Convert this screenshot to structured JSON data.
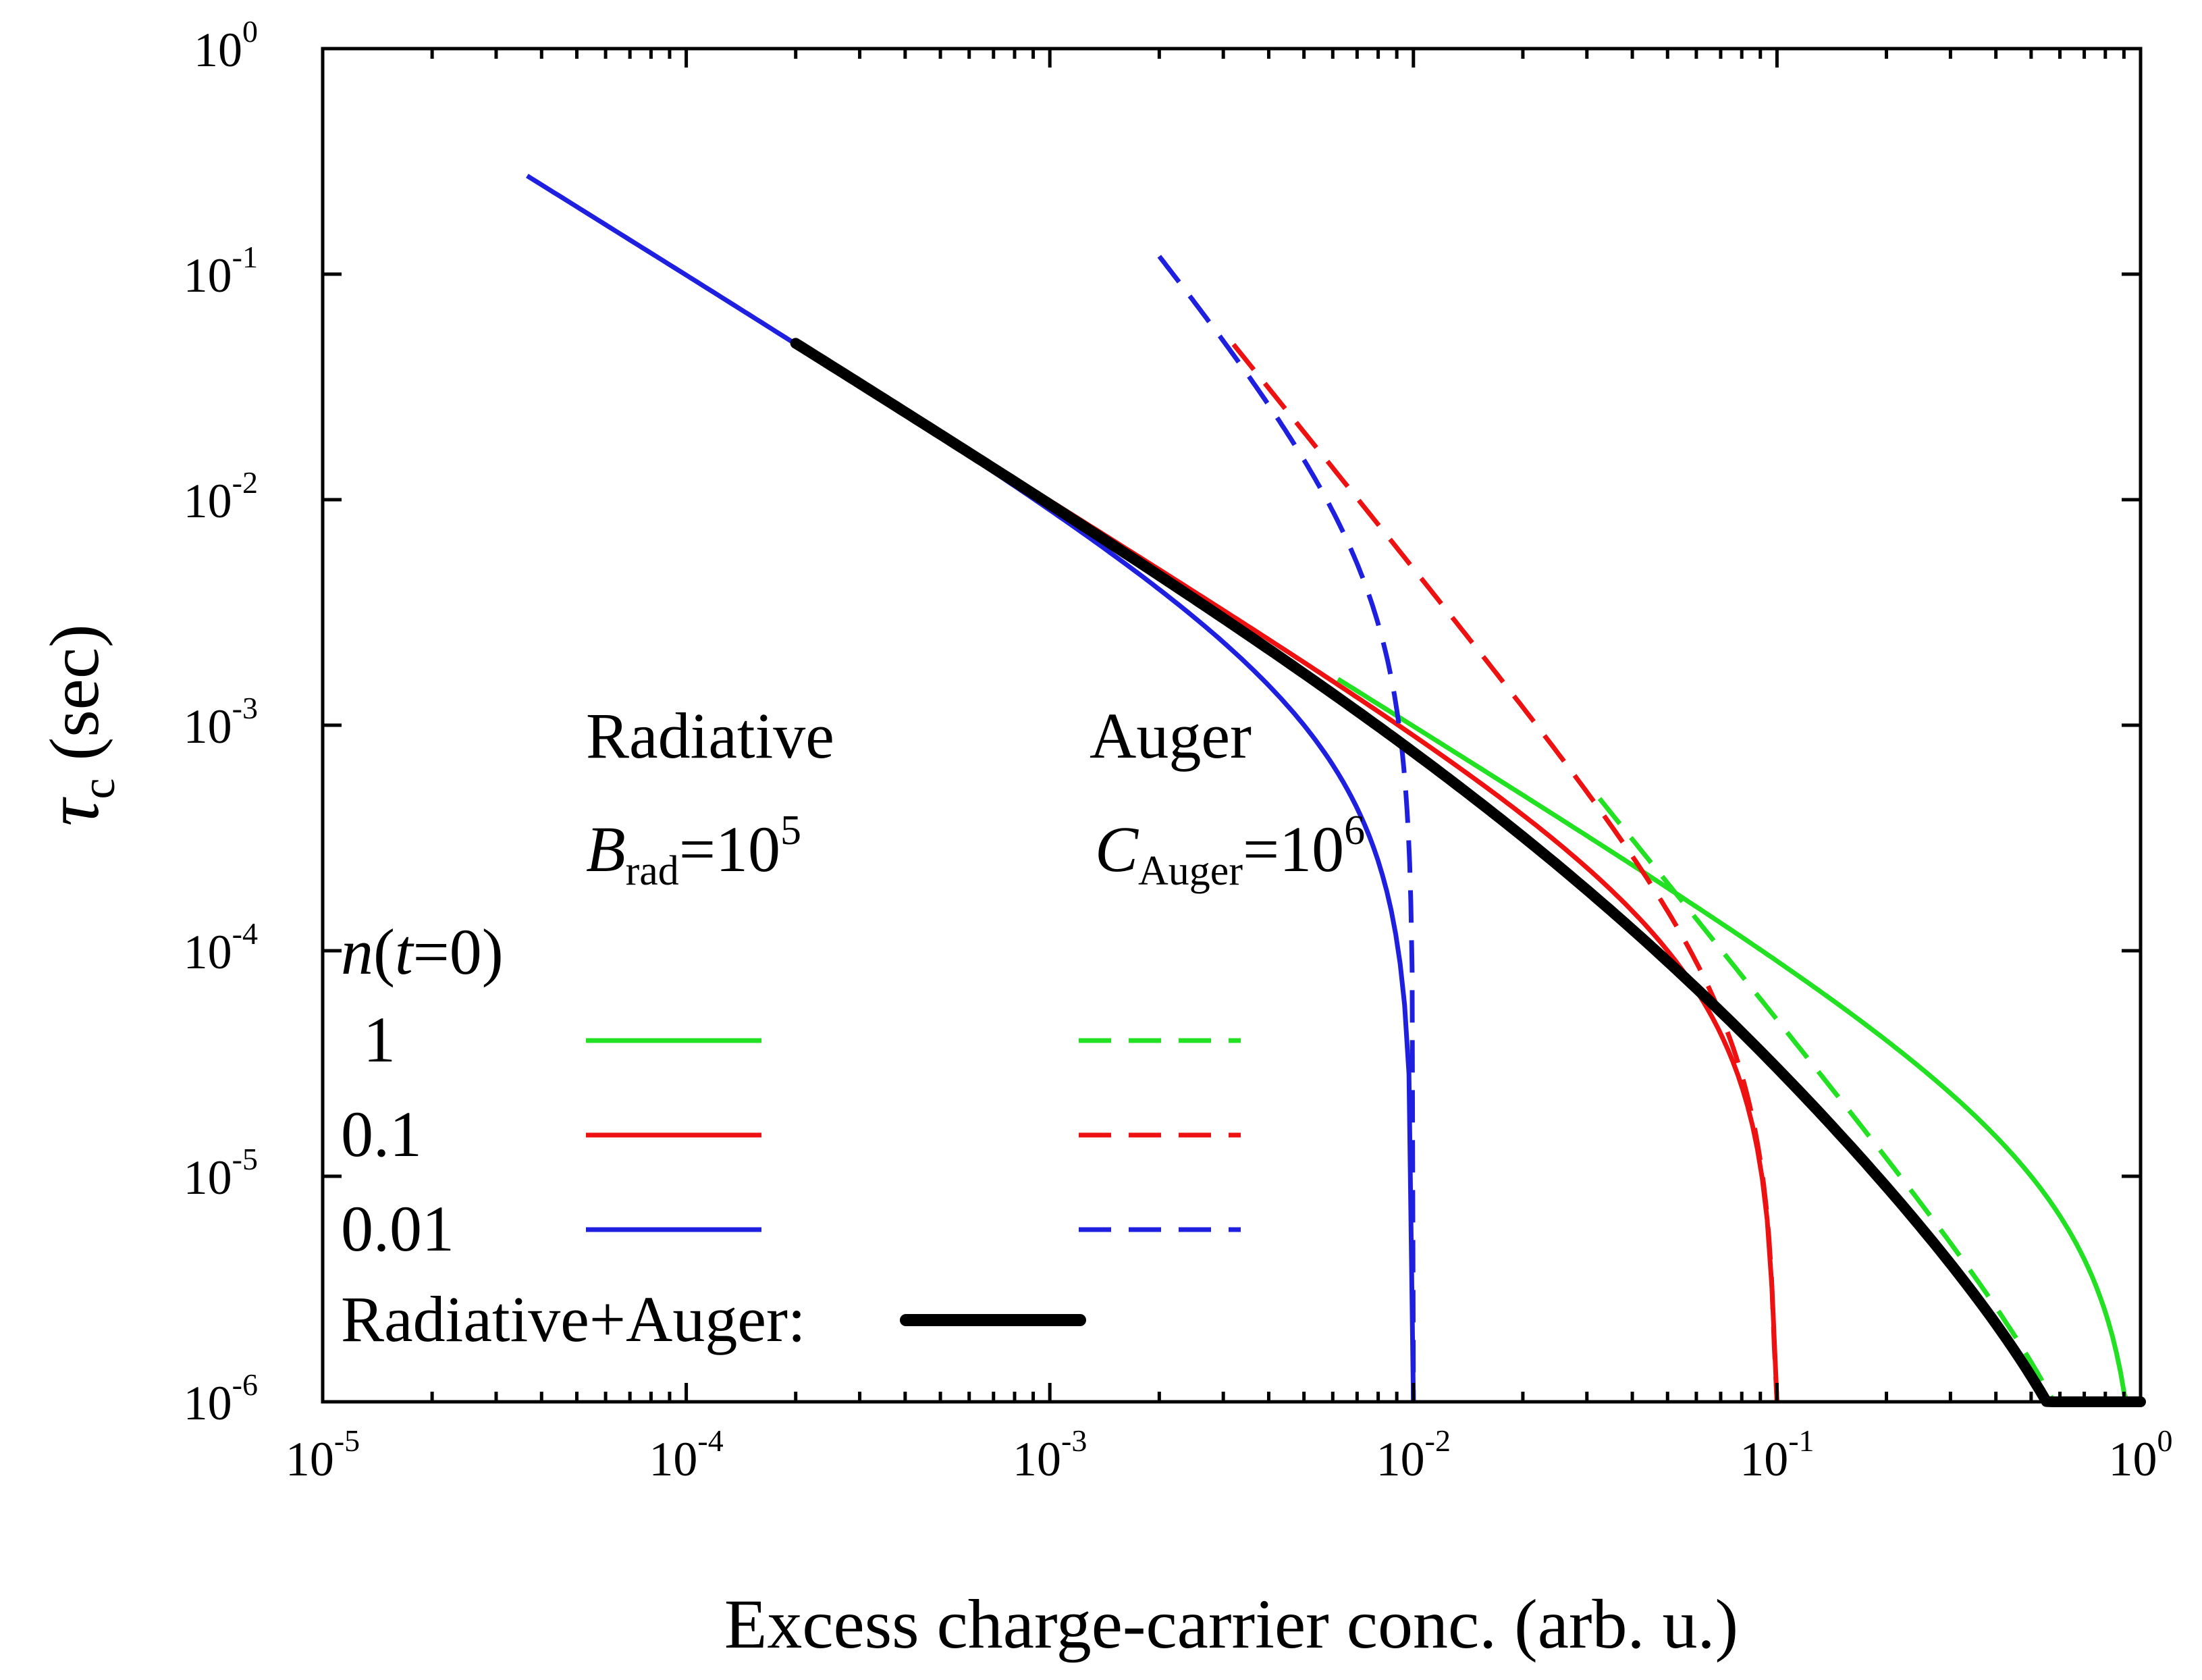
{
  "chart_data": {
    "type": "line",
    "x_scale": "log",
    "y_scale": "log",
    "xlim": [
      1e-05,
      1
    ],
    "ylim": [
      1e-06,
      1
    ],
    "xlabel": "Excess charge-carrier conc. (arb. u.)",
    "ylabel": {
      "symbol": "τ",
      "subscript": "c",
      "rest": " (sec)"
    },
    "x_ticks": [
      {
        "base": "10",
        "exp": "-5",
        "value": 1e-05
      },
      {
        "base": "10",
        "exp": "-4",
        "value": 0.0001
      },
      {
        "base": "10",
        "exp": "-3",
        "value": 0.001
      },
      {
        "base": "10",
        "exp": "-2",
        "value": 0.01
      },
      {
        "base": "10",
        "exp": "-1",
        "value": 0.1
      },
      {
        "base": "10",
        "exp": "0",
        "value": 1
      }
    ],
    "y_ticks": [
      {
        "base": "10",
        "exp": "-6",
        "value": 1e-06
      },
      {
        "base": "10",
        "exp": "-5",
        "value": 1e-05
      },
      {
        "base": "10",
        "exp": "-4",
        "value": 0.0001
      },
      {
        "base": "10",
        "exp": "-3",
        "value": 0.001
      },
      {
        "base": "10",
        "exp": "-2",
        "value": 0.01
      },
      {
        "base": "10",
        "exp": "-1",
        "value": 0.1
      },
      {
        "base": "10",
        "exp": "0",
        "value": 1
      }
    ],
    "params": {
      "B_rad": 100000,
      "C_Auger": 1000000
    },
    "series": [
      {
        "name": "Radiative, n(t=0)=1",
        "mechanism": "radiative",
        "n0": 1,
        "color": "#22e022",
        "dash": "solid",
        "x_range": [
          0.0062,
          1
        ]
      },
      {
        "name": "Radiative, n(t=0)=0.1",
        "mechanism": "radiative",
        "n0": 0.1,
        "color": "#ee1111",
        "dash": "solid",
        "x_range": [
          0.0002,
          0.1
        ]
      },
      {
        "name": "Radiative, n(t=0)=0.01",
        "mechanism": "radiative",
        "n0": 0.01,
        "color": "#1f1fe0",
        "dash": "solid",
        "x_range": [
          3.65e-05,
          0.01
        ]
      },
      {
        "name": "Auger, n(t=0)=1",
        "mechanism": "auger",
        "n0": 1,
        "color": "#22e022",
        "dash": "dashed",
        "x_range": [
          0.0325,
          1
        ]
      },
      {
        "name": "Auger, n(t=0)=0.1",
        "mechanism": "auger",
        "n0": 0.1,
        "color": "#ee1111",
        "dash": "dashed",
        "x_range": [
          0.0032,
          0.1
        ]
      },
      {
        "name": "Auger, n(t=0)=0.01",
        "mechanism": "auger",
        "n0": 0.01,
        "color": "#1f1fe0",
        "dash": "dashed",
        "x_range": [
          0.002,
          0.01
        ]
      },
      {
        "name": "Radiative+Auger",
        "mechanism": "combined",
        "n0": 1,
        "color": "#000000",
        "dash": "solid",
        "x_range": [
          0.0002,
          1
        ]
      }
    ],
    "legend": {
      "radiative_title": "Radiative",
      "radiative_param": {
        "symbol": "B",
        "sub": "rad",
        "eq": "=10",
        "exp": "5"
      },
      "auger_title": "Auger",
      "auger_param": {
        "symbol": "C",
        "sub": "Auger",
        "eq": "=10",
        "exp": "6"
      },
      "n_label": {
        "n": "n",
        "open": "(",
        "t": "t",
        "rest": "=0)"
      },
      "rows": [
        {
          "label": "1",
          "color": "#22e022"
        },
        {
          "label": "0.1",
          "color": "#ee1111"
        },
        {
          "label": "0.01",
          "color": "#1f1fe0"
        }
      ],
      "combined_label": "Radiative+Auger:",
      "combined_color": "#000000"
    }
  }
}
